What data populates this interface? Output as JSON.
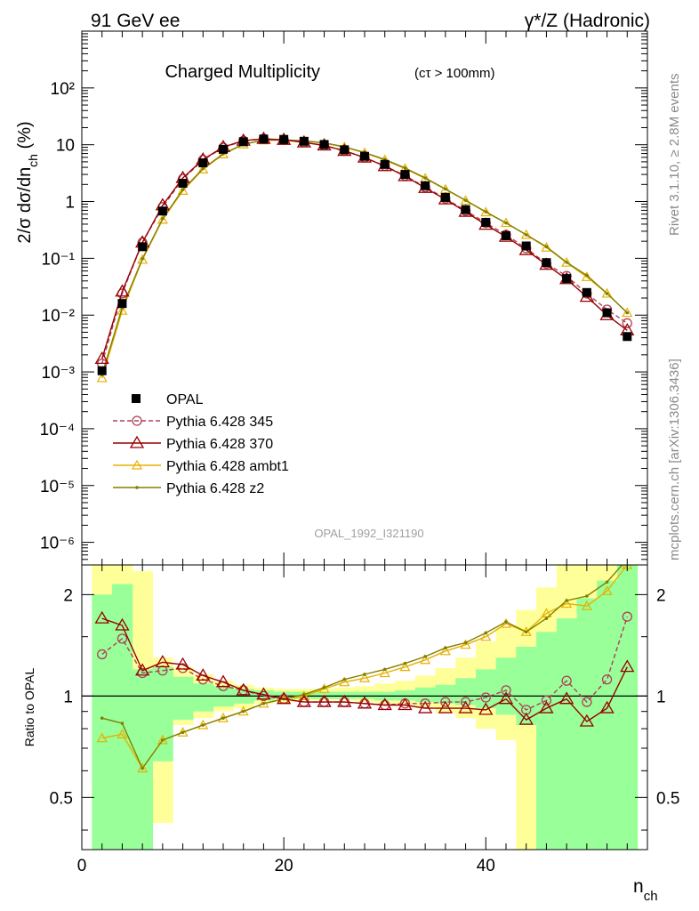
{
  "header": {
    "left_label": "91 GeV ee",
    "right_label": "γ*/Z (Hadronic)"
  },
  "side": {
    "rivet": "Rivet 3.1.10, ≥ 2.8M events",
    "mcplots": "mcplots.cern.ch [arXiv:1306.3436]"
  },
  "chart_data": [
    {
      "type": "line",
      "title": "Charged Multiplicity",
      "title_note": "(cτ > 100mm)",
      "ylabel": "2/σ dσ/dn_ch (%)",
      "xlabel": "n_ch",
      "xlim": [
        0,
        56
      ],
      "ylim": [
        4e-07,
        1000
      ],
      "yscale": "log",
      "yticks": [
        "10⁻⁶",
        "10⁻⁵",
        "10⁻⁴",
        "10⁻³",
        "10⁻²",
        "10⁻¹",
        "1",
        "10",
        "10²"
      ],
      "analysis_id": "OPAL_1992_I321190",
      "legend_position": "lower-left",
      "x": [
        2,
        4,
        6,
        8,
        10,
        12,
        14,
        16,
        18,
        20,
        22,
        24,
        26,
        28,
        30,
        32,
        34,
        36,
        38,
        40,
        42,
        44,
        46,
        48,
        50,
        52,
        54
      ],
      "series": [
        {
          "name": "OPAL",
          "color": "#000000",
          "marker": "filled-square",
          "values": [
            0.00105,
            0.016,
            0.16,
            0.68,
            2.1,
            4.8,
            8.3,
            11.3,
            12.6,
            12.4,
            11.5,
            10.1,
            8.15,
            6.25,
            4.5,
            3.0,
            1.9,
            1.18,
            0.72,
            0.43,
            0.25,
            0.165,
            0.084,
            0.044,
            0.025,
            0.011,
            0.0042
          ]
        },
        {
          "name": "Pythia 6.428 345",
          "color": "#b0405a",
          "marker": "open-circle",
          "dashed": true,
          "values": [
            0.0014,
            0.024,
            0.19,
            0.8,
            2.5,
            5.4,
            8.9,
            11.7,
            12.7,
            12.2,
            11.0,
            9.7,
            7.85,
            5.95,
            4.25,
            2.85,
            1.8,
            1.13,
            0.69,
            0.42,
            0.26,
            0.15,
            0.081,
            0.049,
            0.024,
            0.0125,
            0.0072
          ]
        },
        {
          "name": "Pythia 6.428 370",
          "color": "#990000",
          "marker": "open-triangle",
          "values": [
            0.0017,
            0.026,
            0.19,
            0.86,
            2.6,
            5.5,
            9.1,
            11.8,
            12.7,
            12.2,
            11.0,
            9.7,
            7.8,
            5.95,
            4.2,
            2.8,
            1.74,
            1.09,
            0.66,
            0.39,
            0.24,
            0.14,
            0.077,
            0.043,
            0.021,
            0.01,
            0.0054
          ]
        },
        {
          "name": "Pythia 6.428 ambt1",
          "color": "#e8b000",
          "marker": "open-triangle-small",
          "values": [
            0.00078,
            0.012,
            0.095,
            0.48,
            1.55,
            3.7,
            6.8,
            10.2,
            12.0,
            12.1,
            11.7,
            10.7,
            9.1,
            7.2,
            5.4,
            3.8,
            2.55,
            1.64,
            1.04,
            0.65,
            0.42,
            0.26,
            0.155,
            0.084,
            0.047,
            0.024,
            0.011
          ]
        },
        {
          "name": "Pythia 6.428 z2",
          "color": "#808000",
          "marker": "dot",
          "values": [
            0.0009,
            0.0135,
            0.098,
            0.5,
            1.62,
            3.8,
            6.9,
            10.2,
            12.0,
            12.2,
            11.7,
            10.8,
            9.2,
            7.3,
            5.5,
            3.9,
            2.6,
            1.66,
            1.05,
            0.66,
            0.42,
            0.26,
            0.16,
            0.085,
            0.05,
            0.024,
            0.011
          ]
        }
      ]
    },
    {
      "type": "line",
      "ylabel": "Ratio to OPAL",
      "xlabel": "n_ch",
      "xlim": [
        0,
        56
      ],
      "ylim": [
        0.35,
        2.45
      ],
      "yscale": "log",
      "xticks": [
        "0",
        "20",
        "40"
      ],
      "yticks": [
        "0.5",
        "1",
        "2"
      ],
      "x": [
        2,
        4,
        6,
        8,
        10,
        12,
        14,
        16,
        18,
        20,
        22,
        24,
        26,
        28,
        30,
        32,
        34,
        36,
        38,
        40,
        42,
        44,
        46,
        48,
        50,
        52,
        54
      ],
      "bands": {
        "edges": [
          1,
          3,
          5,
          7,
          9,
          11,
          13,
          15,
          17,
          19,
          21,
          23,
          25,
          27,
          29,
          31,
          33,
          35,
          37,
          39,
          41,
          43,
          45,
          47,
          49,
          51,
          53,
          55
        ],
        "green_low": [
          0.35,
          0.35,
          0.35,
          0.64,
          0.85,
          0.9,
          0.93,
          0.95,
          0.97,
          0.98,
          0.98,
          0.98,
          0.98,
          0.98,
          0.97,
          0.97,
          0.96,
          0.95,
          0.94,
          0.92,
          0.88,
          0.82,
          0.35,
          0.35,
          0.35,
          0.35,
          0.35
        ],
        "green_high": [
          2.0,
          2.15,
          1.2,
          1.22,
          1.14,
          1.09,
          1.07,
          1.05,
          1.04,
          1.03,
          1.03,
          1.03,
          1.03,
          1.03,
          1.03,
          1.04,
          1.06,
          1.08,
          1.13,
          1.2,
          1.3,
          1.4,
          1.55,
          1.7,
          1.95,
          2.2,
          2.45
        ],
        "yellow_low": [
          0.35,
          0.35,
          0.35,
          0.42,
          0.82,
          0.86,
          0.9,
          0.92,
          0.95,
          0.96,
          0.97,
          0.97,
          0.97,
          0.96,
          0.95,
          0.94,
          0.92,
          0.89,
          0.86,
          0.8,
          0.74,
          0.35,
          0.35,
          0.35,
          0.35,
          0.35,
          0.35
        ],
        "yellow_high": [
          2.45,
          2.45,
          2.35,
          1.3,
          1.22,
          1.16,
          1.11,
          1.08,
          1.06,
          1.05,
          1.05,
          1.05,
          1.06,
          1.07,
          1.09,
          1.11,
          1.15,
          1.21,
          1.3,
          1.45,
          1.6,
          1.8,
          2.1,
          2.45,
          2.45,
          2.45,
          2.45
        ]
      },
      "series": [
        {
          "name": "Pythia 6.428 345",
          "values": [
            1.33,
            1.48,
            1.17,
            1.19,
            1.21,
            1.12,
            1.07,
            1.04,
            1.0,
            0.98,
            0.96,
            0.96,
            0.96,
            0.95,
            0.94,
            0.95,
            0.95,
            0.96,
            0.96,
            0.99,
            1.04,
            0.91,
            0.97,
            1.11,
            0.96,
            1.12,
            1.72
          ]
        },
        {
          "name": "Pythia 6.428 370",
          "values": [
            1.7,
            1.62,
            1.19,
            1.26,
            1.24,
            1.15,
            1.1,
            1.04,
            1.01,
            0.98,
            0.96,
            0.96,
            0.96,
            0.95,
            0.94,
            0.94,
            0.92,
            0.92,
            0.92,
            0.91,
            0.98,
            0.85,
            0.92,
            0.98,
            0.84,
            0.92,
            1.22
          ]
        },
        {
          "name": "Pythia 6.428 ambt1",
          "values": [
            0.75,
            0.77,
            0.61,
            0.74,
            0.78,
            0.82,
            0.86,
            0.9,
            0.95,
            0.98,
            1.0,
            1.05,
            1.1,
            1.13,
            1.17,
            1.22,
            1.28,
            1.36,
            1.42,
            1.5,
            1.64,
            1.55,
            1.76,
            1.88,
            1.85,
            2.05,
            2.45
          ]
        },
        {
          "name": "Pythia 6.428 z2",
          "values": [
            0.86,
            0.83,
            0.61,
            0.74,
            0.78,
            0.82,
            0.86,
            0.9,
            0.95,
            0.98,
            1.01,
            1.06,
            1.12,
            1.16,
            1.2,
            1.25,
            1.31,
            1.39,
            1.44,
            1.54,
            1.66,
            1.55,
            1.7,
            1.92,
            1.98,
            2.18,
            2.55
          ]
        }
      ]
    }
  ]
}
